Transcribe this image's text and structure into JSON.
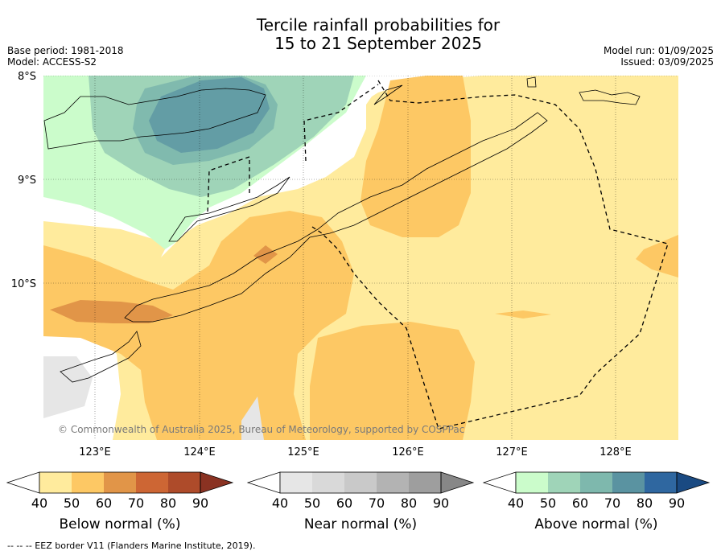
{
  "title_line1": "Tercile rainfall probabilities for",
  "title_line2": "15 to 21 September 2025",
  "meta_left": {
    "base_period": "Base period: 1981-2018",
    "model": "Model: ACCESS-S2"
  },
  "meta_right": {
    "model_run": "Model run: 01/09/2025",
    "issued": "Issued: 03/09/2025"
  },
  "lat_labels": [
    "8°S",
    "9°S",
    "10°S"
  ],
  "lon_labels": [
    "123°E",
    "124°E",
    "125°E",
    "126°E",
    "127°E",
    "128°E"
  ],
  "copyright": "© Commonwealth of Australia 2025, Bureau of Meteorology, supported by COSPPac",
  "colorbars": [
    {
      "title": "Below normal (%)",
      "ticks": [
        "40",
        "50",
        "60",
        "70",
        "80",
        "90"
      ],
      "colors": [
        "#ffffff",
        "#ffeb9d",
        "#fdc864",
        "#e19548",
        "#cd6634",
        "#ae4b2a",
        "#8a3222"
      ]
    },
    {
      "title": "Near normal (%)",
      "ticks": [
        "40",
        "50",
        "60",
        "70",
        "80",
        "90"
      ],
      "colors": [
        "#ffffff",
        "#e6e6e6",
        "#d9d9d9",
        "#c9c9c9",
        "#b3b3b3",
        "#9e9e9e",
        "#878787"
      ]
    },
    {
      "title": "Above normal (%)",
      "ticks": [
        "40",
        "50",
        "60",
        "70",
        "80",
        "90"
      ],
      "colors": [
        "#ffffff",
        "#cbfccb",
        "#9fd4b8",
        "#7eb8ad",
        "#5a93a1",
        "#2f67a0",
        "#1a4a82"
      ]
    }
  ],
  "footnote": "--  --  -- EEZ border V11 (Flanders Marine Institute, 2019)."
}
